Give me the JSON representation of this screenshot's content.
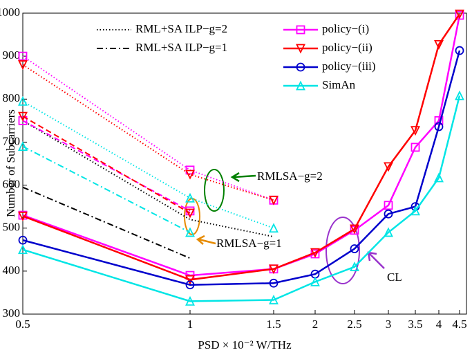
{
  "chart_data": {
    "type": "line",
    "ylabel": "Number of Subcarriers",
    "xlabel": "PSD × 10⁻² W/THz",
    "categories": [
      "0.5",
      "1",
      "1.5",
      "2",
      "2.5",
      "3",
      "3.5",
      "4",
      "4.5"
    ],
    "ylim": [
      300,
      1000
    ],
    "yticks": [
      300,
      400,
      500,
      600,
      700,
      800,
      900,
      1000
    ],
    "series": [
      {
        "name": "RML+SA ILP−g=2",
        "color": "#000000",
        "dash": "dotted",
        "marker": "none",
        "values": [
          750,
          520,
          480,
          null,
          null,
          null,
          null,
          null,
          null
        ]
      },
      {
        "name": "RML+SA ILP−g=1",
        "color": "#000000",
        "dash": "dashdot",
        "marker": "none",
        "values": [
          595,
          430,
          null,
          null,
          null,
          null,
          null,
          null,
          null
        ]
      },
      {
        "name": "policy−(i)",
        "color": "#ff00ff",
        "dash": "solid",
        "marker": "square",
        "values": [
          530,
          390,
          405,
          440,
          495,
          553,
          688,
          750,
          995
        ]
      },
      {
        "name": "policy−(ii)",
        "color": "#ff0000",
        "dash": "solid",
        "marker": "triangle-down",
        "values": [
          528,
          380,
          405,
          443,
          498,
          643,
          727,
          927,
          998
        ]
      },
      {
        "name": "policy−(iii)",
        "color": "#0000cc",
        "dash": "solid",
        "marker": "circle",
        "values": [
          472,
          368,
          372,
          393,
          452,
          533,
          550,
          736,
          913
        ]
      },
      {
        "name": "SimAn",
        "color": "#00e5e5",
        "dash": "solid",
        "marker": "triangle-up",
        "values": [
          450,
          330,
          333,
          375,
          410,
          490,
          540,
          617,
          808
        ]
      },
      {
        "color": "#ff00ff",
        "dash": "dotted",
        "marker": "square",
        "values": [
          900,
          635,
          565,
          null,
          null,
          null,
          null,
          null,
          null
        ]
      },
      {
        "color": "#ff0000",
        "dash": "dotted",
        "marker": "triangle-down",
        "values": [
          880,
          625,
          565,
          null,
          null,
          null,
          null,
          null,
          null
        ]
      },
      {
        "color": "#00e5e5",
        "dash": "dotted",
        "marker": "triangle-up",
        "values": [
          795,
          570,
          500,
          null,
          null,
          null,
          null,
          null,
          null
        ]
      },
      {
        "color": "#ff00ff",
        "dash": "dashed",
        "marker": "square",
        "values": [
          750,
          540,
          null,
          null,
          null,
          null,
          null,
          null,
          null
        ]
      },
      {
        "color": "#ff0000",
        "dash": "dashed",
        "marker": "triangle-down",
        "values": [
          760,
          535,
          null,
          null,
          null,
          null,
          null,
          null,
          null
        ]
      },
      {
        "color": "#00e5e5",
        "dash": "dashdot",
        "marker": "triangle-up",
        "values": [
          690,
          490,
          null,
          null,
          null,
          null,
          null,
          null,
          null
        ]
      }
    ],
    "annotations": [
      {
        "text": "RMLSA−g=2",
        "color": "#008000"
      },
      {
        "text": "RMLSA−g=1",
        "color": "#e68a00"
      },
      {
        "text": "CL",
        "color": "#9933cc"
      }
    ]
  }
}
